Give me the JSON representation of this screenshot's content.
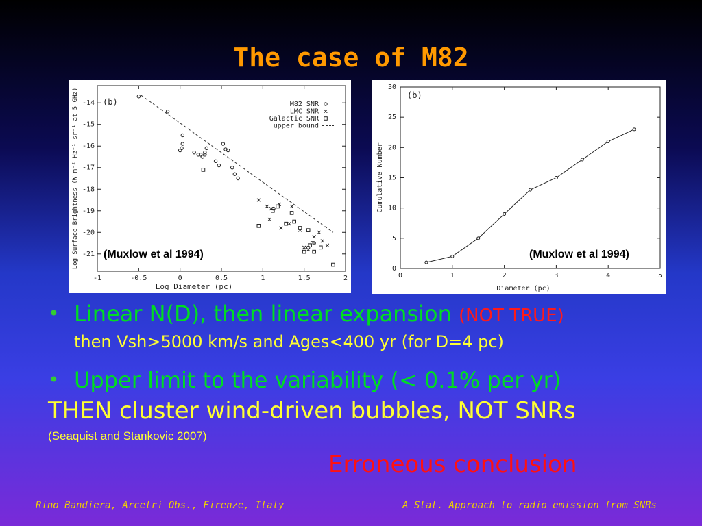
{
  "slide": {
    "title": "The case of M82",
    "bullets": [
      {
        "main": "Linear N(D), then linear expansion",
        "note": "(NOT TRUE)",
        "sub": "then Vsh>5000 km/s and Ages<400 yr (for D=4 pc)"
      },
      {
        "main": "Upper limit to the variability (< 0.1% per yr)"
      }
    ],
    "conclusion": "THEN cluster wind-driven  bubbles, NOT SNRs",
    "reference": "(Seaquist and Stankovic 2007)",
    "verdict": "Erroneous conclusion",
    "footer_left": "Rino Bandiera, Arcetri Obs., Firenze, Italy",
    "footer_right": "A Stat. Approach to radio emission from SNRs"
  },
  "chart_data": [
    {
      "type": "scatter",
      "panel_label": "(b)",
      "citation": "(Muxlow et al 1994)",
      "xlabel": "Log  Diameter  (pc)",
      "ylabel": "Log  Surface  Brightness  (W m⁻² Hz⁻¹ sr⁻¹ at 5 GHz)",
      "xlim": [
        -1,
        2
      ],
      "ylim": [
        -21.8,
        -13.2
      ],
      "xticks": [
        -1,
        -0.5,
        0,
        0.5,
        1,
        1.5,
        2
      ],
      "xtick_labels": [
        "-1",
        "-0.5",
        "0",
        "0.5",
        "1",
        "1.5",
        "2"
      ],
      "yticks": [
        -14,
        -15,
        -16,
        -17,
        -18,
        -19,
        -20,
        -21
      ],
      "ytick_labels": [
        "-14",
        "-15",
        "-16",
        "-17",
        "-18",
        "-19",
        "-20",
        "-21"
      ],
      "legend_position": "top-right",
      "series": [
        {
          "name": "M82 SNR",
          "marker": "circle",
          "points": [
            [
              -0.5,
              -13.7
            ],
            [
              -0.15,
              -14.4
            ],
            [
              0.03,
              -15.5
            ],
            [
              0.03,
              -15.9
            ],
            [
              0.02,
              -16.1
            ],
            [
              0,
              -16.2
            ],
            [
              0.17,
              -16.3
            ],
            [
              0.22,
              -16.4
            ],
            [
              0.25,
              -16.4
            ],
            [
              0.27,
              -16.5
            ],
            [
              0.3,
              -16.4
            ],
            [
              0.3,
              -16.3
            ],
            [
              0.32,
              -16.1
            ],
            [
              0.43,
              -16.7
            ],
            [
              0.47,
              -16.9
            ],
            [
              0.52,
              -15.9
            ],
            [
              0.55,
              -16.15
            ],
            [
              0.58,
              -16.2
            ],
            [
              0.63,
              -17
            ],
            [
              0.66,
              -17.3
            ],
            [
              0.7,
              -17.5
            ],
            [
              1.13,
              -18.9
            ],
            [
              1.55,
              -20.7
            ],
            [
              1.62,
              -20.5
            ]
          ]
        },
        {
          "name": "LMC SNR",
          "marker": "x",
          "points": [
            [
              0.95,
              -18.5
            ],
            [
              1.05,
              -18.8
            ],
            [
              1.1,
              -18.9
            ],
            [
              1.08,
              -19.4
            ],
            [
              1.2,
              -18.7
            ],
            [
              1.22,
              -19.8
            ],
            [
              1.32,
              -19.6
            ],
            [
              1.35,
              -18.8
            ],
            [
              1.45,
              -19.9
            ],
            [
              1.5,
              -20.7
            ],
            [
              1.55,
              -20.8
            ],
            [
              1.62,
              -20.2
            ],
            [
              1.68,
              -20
            ],
            [
              1.72,
              -20.4
            ],
            [
              1.78,
              -20.6
            ]
          ]
        },
        {
          "name": "Galactic SNR",
          "marker": "square",
          "points": [
            [
              0.28,
              -17.1
            ],
            [
              0.95,
              -19.7
            ],
            [
              1.12,
              -19
            ],
            [
              1.18,
              -18.8
            ],
            [
              1.28,
              -19.6
            ],
            [
              1.35,
              -19.1
            ],
            [
              1.38,
              -19.5
            ],
            [
              1.45,
              -19.8
            ],
            [
              1.5,
              -20.9
            ],
            [
              1.55,
              -19.9
            ],
            [
              1.57,
              -20.6
            ],
            [
              1.6,
              -20.5
            ],
            [
              1.62,
              -20.9
            ],
            [
              1.7,
              -20.7
            ],
            [
              1.85,
              -21.5
            ]
          ]
        }
      ],
      "upper_bound": {
        "name": "upper bound",
        "points": [
          [
            -0.47,
            -13.65
          ],
          [
            1.85,
            -20
          ]
        ]
      }
    },
    {
      "type": "line",
      "panel_label": "(b)",
      "citation": "(Muxlow et al 1994)",
      "xlabel": "Diameter (pc)",
      "ylabel": "Cumulative Number",
      "xlim": [
        0,
        5
      ],
      "ylim": [
        0,
        30
      ],
      "xticks": [
        0,
        1,
        2,
        3,
        4,
        5
      ],
      "xtick_labels": [
        "0",
        "1",
        "2",
        "3",
        "4",
        "5"
      ],
      "yticks": [
        0,
        5,
        10,
        15,
        20,
        25,
        30
      ],
      "ytick_labels": [
        "0",
        "5",
        "10",
        "15",
        "20",
        "25",
        "30"
      ],
      "x": [
        0.5,
        1,
        1.5,
        2,
        2.5,
        3,
        3.5,
        4,
        4.5
      ],
      "values": [
        1,
        2,
        5,
        9,
        13,
        15,
        18,
        21,
        23
      ]
    }
  ]
}
